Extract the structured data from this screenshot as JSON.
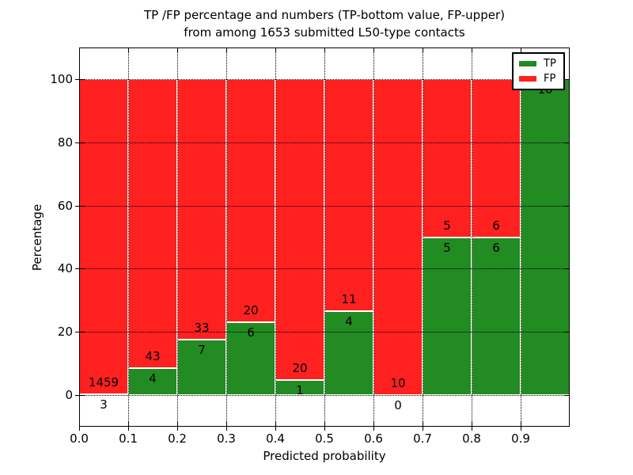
{
  "figure": {
    "title_line1": "TP /FP percentage and numbers (TP-bottom value, FP-upper)",
    "title_line2": "from among 1653 submitted L50-type contacts"
  },
  "chart_data": {
    "type": "bar",
    "stacked": true,
    "normalized_to_percent": true,
    "title": "TP /FP percentage and numbers (TP-bottom value, FP-upper) from among 1653 submitted L50-type contacts",
    "xlabel": "Predicted probability",
    "ylabel": "Percentage",
    "xlim": [
      0.0,
      1.0
    ],
    "ylim": [
      -10,
      110
    ],
    "grid": "dotted",
    "total_contacts": 1653,
    "bin_edges": [
      0.0,
      0.1,
      0.2,
      0.3,
      0.4,
      0.5,
      0.6,
      0.7,
      0.8,
      0.9,
      1.0
    ],
    "xtick_labels": [
      "0.0",
      "0.1",
      "0.2",
      "0.3",
      "0.4",
      "0.5",
      "0.6",
      "0.7",
      "0.8",
      "0.9"
    ],
    "ytick_values": [
      0,
      20,
      40,
      60,
      80,
      100
    ],
    "series": [
      {
        "name": "TP",
        "color": "#228b22",
        "counts": [
          3,
          4,
          7,
          6,
          1,
          4,
          0,
          5,
          6,
          10
        ]
      },
      {
        "name": "FP",
        "color": "#ff2020",
        "counts": [
          1459,
          43,
          33,
          20,
          20,
          11,
          10,
          5,
          6,
          0
        ]
      }
    ],
    "tp_percent_per_bin": [
      0.21,
      8.51,
      17.5,
      23.08,
      4.76,
      26.67,
      0.0,
      50.0,
      50.0,
      100.0
    ],
    "bar_edge_color": "#ffffff",
    "legend": {
      "position": "upper right",
      "entries": [
        "TP",
        "FP"
      ]
    }
  }
}
